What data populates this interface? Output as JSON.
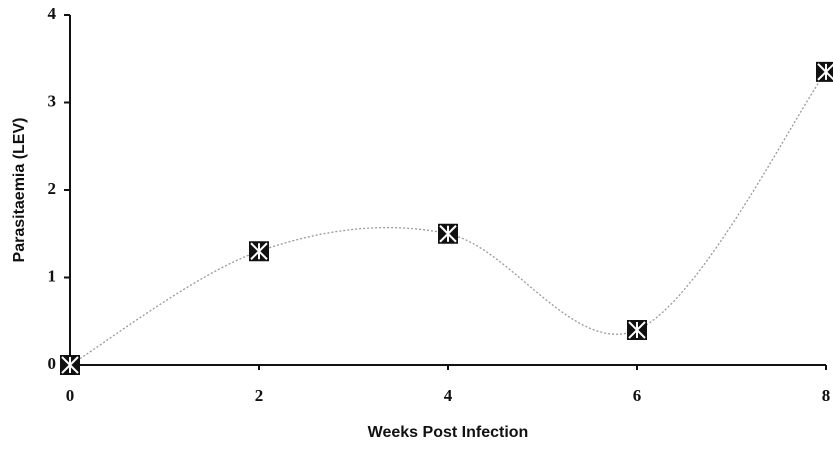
{
  "chart_data": {
    "type": "line",
    "smooth": true,
    "x_label": "Weeks Post Infection",
    "y_label": "Parasitaemia (LEV)",
    "x": [
      0,
      2,
      4,
      6,
      8
    ],
    "values": [
      0,
      1.3,
      1.5,
      0.4,
      3.35
    ],
    "color": "#999999",
    "marker_color": "#111111",
    "xlim": [
      0,
      8
    ],
    "ylim": [
      0,
      4
    ],
    "xticks": [
      0,
      2,
      4,
      6,
      8
    ],
    "yticks": [
      0,
      1,
      2,
      3,
      4
    ]
  }
}
